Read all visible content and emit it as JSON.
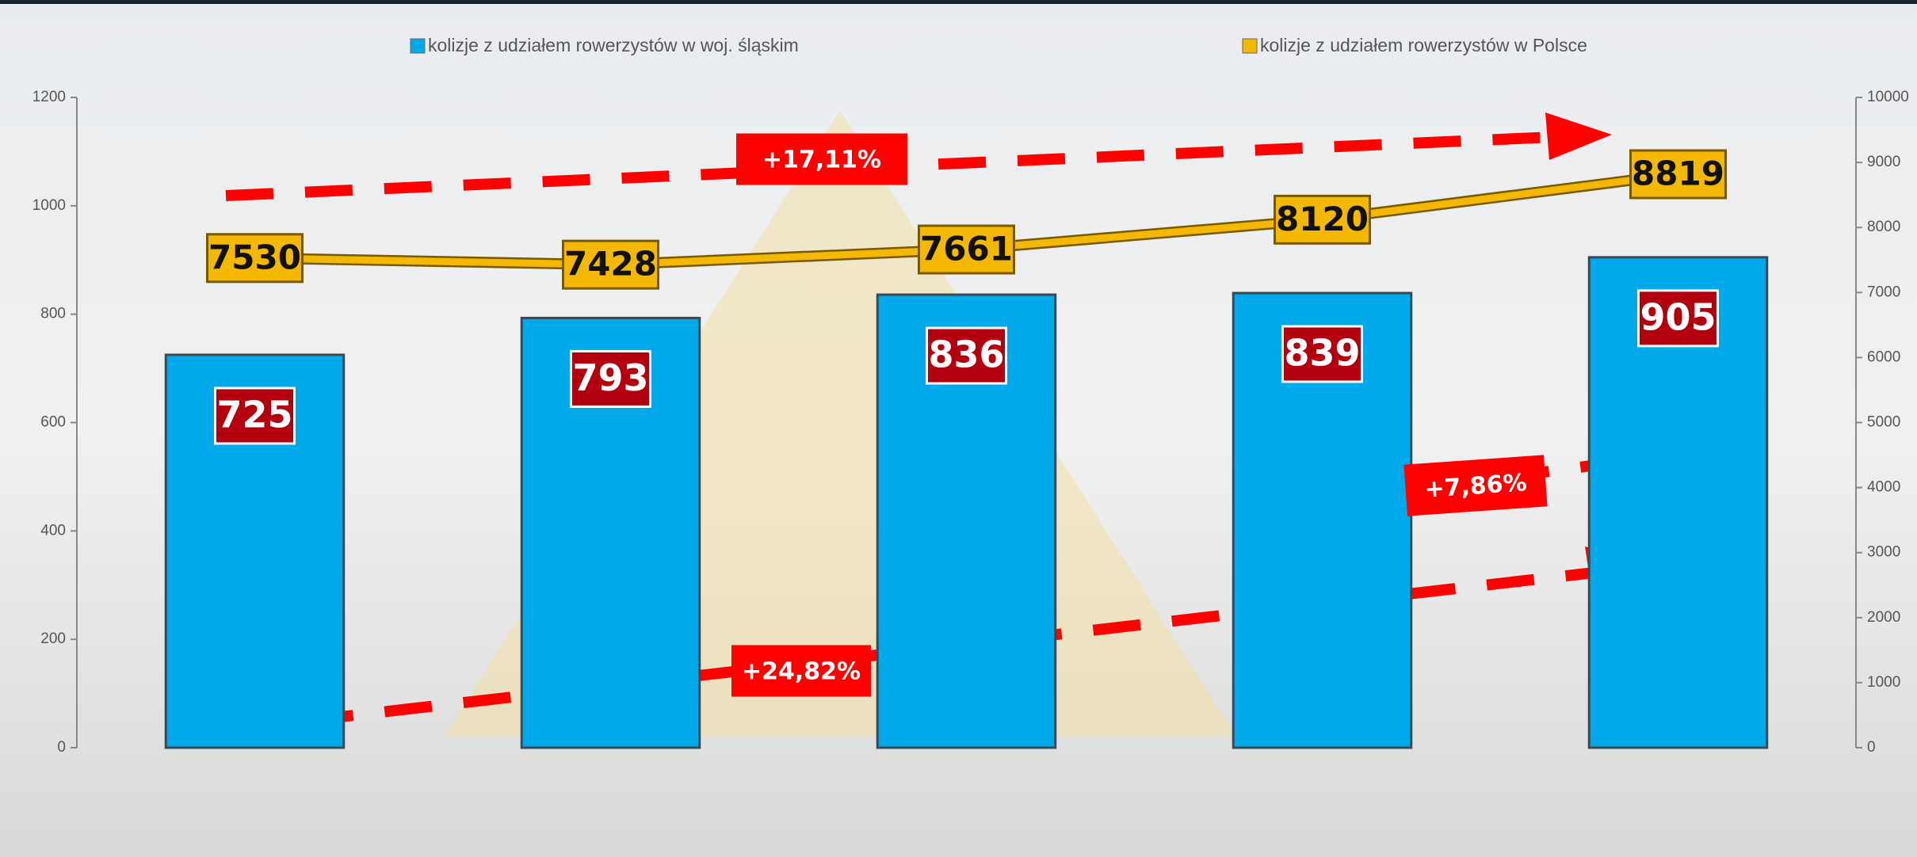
{
  "chart_data": {
    "type": "bar",
    "categories": [
      null,
      null,
      null,
      null,
      null
    ],
    "series": [
      {
        "name": "kolizje z udziałem rowerzystów w woj. śląskim",
        "color": "#00a9ea",
        "type": "bar",
        "values": [
          725,
          793,
          836,
          839,
          905
        ]
      },
      {
        "name": "kolizje z udziałem rowerzystów w Polsce",
        "color": "#f5b800",
        "type": "line",
        "axis": "y2",
        "values": [
          7530,
          7428,
          7661,
          8120,
          8819
        ]
      }
    ],
    "ylim": [
      0,
      1200
    ],
    "yticks": [
      0,
      200,
      400,
      600,
      800,
      1000,
      1200
    ],
    "y2lim": [
      0,
      10000
    ],
    "y2ticks": [
      0,
      1000,
      2000,
      3000,
      4000,
      5000,
      6000,
      7000,
      8000,
      9000,
      10000
    ],
    "grid": false,
    "legend": "top",
    "annotations": [
      "+17,11%",
      "+7,86%",
      "+24,82%"
    ]
  }
}
